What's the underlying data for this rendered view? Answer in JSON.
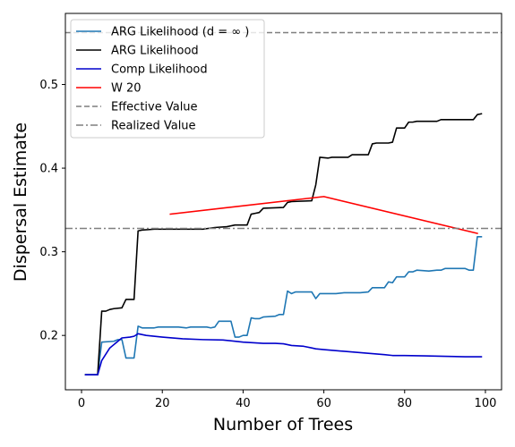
{
  "chart_data": {
    "type": "line",
    "title": "",
    "xlabel": "Number of Trees",
    "ylabel": "Dispersal Estimate",
    "xlim": [
      -4,
      104
    ],
    "ylim": [
      0.135,
      0.585
    ],
    "xticks": [
      0,
      20,
      40,
      60,
      80,
      100
    ],
    "yticks": [
      0.2,
      0.3,
      0.4,
      0.5
    ],
    "ytick_labels": [
      "0.2",
      "0.3",
      "0.4",
      "0.5"
    ],
    "grid": false,
    "legend_position": "top-left",
    "series": [
      {
        "name": "ARG Likelihood (d = ∞ )",
        "color": "#1f77b4",
        "style": "solid",
        "points": [
          [
            1,
            0.153
          ],
          [
            4,
            0.153
          ],
          [
            5,
            0.192
          ],
          [
            8,
            0.193
          ],
          [
            9,
            0.195
          ],
          [
            10,
            0.195
          ],
          [
            11,
            0.173
          ],
          [
            13,
            0.173
          ],
          [
            14,
            0.211
          ],
          [
            15,
            0.209
          ],
          [
            18,
            0.209
          ],
          [
            19,
            0.21
          ],
          [
            24,
            0.21
          ],
          [
            26,
            0.209
          ],
          [
            27,
            0.21
          ],
          [
            31,
            0.21
          ],
          [
            32,
            0.209
          ],
          [
            33,
            0.21
          ],
          [
            34,
            0.217
          ],
          [
            37,
            0.217
          ],
          [
            38,
            0.198
          ],
          [
            39,
            0.198
          ],
          [
            40,
            0.2
          ],
          [
            41,
            0.2
          ],
          [
            42,
            0.221
          ],
          [
            43,
            0.22
          ],
          [
            44,
            0.22
          ],
          [
            45,
            0.222
          ],
          [
            48,
            0.223
          ],
          [
            49,
            0.225
          ],
          [
            50,
            0.225
          ],
          [
            51,
            0.253
          ],
          [
            52,
            0.25
          ],
          [
            53,
            0.252
          ],
          [
            57,
            0.252
          ],
          [
            58,
            0.244
          ],
          [
            59,
            0.25
          ],
          [
            63,
            0.25
          ],
          [
            65,
            0.251
          ],
          [
            69,
            0.251
          ],
          [
            71,
            0.252
          ],
          [
            72,
            0.257
          ],
          [
            75,
            0.257
          ],
          [
            76,
            0.264
          ],
          [
            77,
            0.263
          ],
          [
            78,
            0.27
          ],
          [
            80,
            0.27
          ],
          [
            81,
            0.276
          ],
          [
            82,
            0.276
          ],
          [
            83,
            0.278
          ],
          [
            86,
            0.277
          ],
          [
            88,
            0.278
          ],
          [
            89,
            0.278
          ],
          [
            90,
            0.28
          ],
          [
            95,
            0.28
          ],
          [
            96,
            0.278
          ],
          [
            97,
            0.278
          ],
          [
            98,
            0.318
          ],
          [
            99,
            0.318
          ]
        ]
      },
      {
        "name": "ARG Likelihood",
        "color": "#000000",
        "style": "solid",
        "points": [
          [
            1,
            0.153
          ],
          [
            4,
            0.153
          ],
          [
            5,
            0.229
          ],
          [
            6,
            0.229
          ],
          [
            7,
            0.231
          ],
          [
            8,
            0.232
          ],
          [
            10,
            0.233
          ],
          [
            11,
            0.243
          ],
          [
            13,
            0.243
          ],
          [
            14,
            0.325
          ],
          [
            15,
            0.326
          ],
          [
            18,
            0.327
          ],
          [
            30,
            0.327
          ],
          [
            33,
            0.329
          ],
          [
            36,
            0.33
          ],
          [
            38,
            0.332
          ],
          [
            41,
            0.332
          ],
          [
            42,
            0.345
          ],
          [
            43,
            0.346
          ],
          [
            44,
            0.347
          ],
          [
            45,
            0.352
          ],
          [
            50,
            0.353
          ],
          [
            51,
            0.359
          ],
          [
            52,
            0.36
          ],
          [
            57,
            0.361
          ],
          [
            58,
            0.38
          ],
          [
            59,
            0.413
          ],
          [
            61,
            0.412
          ],
          [
            62,
            0.413
          ],
          [
            66,
            0.413
          ],
          [
            67,
            0.416
          ],
          [
            71,
            0.416
          ],
          [
            72,
            0.429
          ],
          [
            73,
            0.43
          ],
          [
            76,
            0.43
          ],
          [
            77,
            0.431
          ],
          [
            78,
            0.448
          ],
          [
            80,
            0.448
          ],
          [
            81,
            0.455
          ],
          [
            82,
            0.455
          ],
          [
            83,
            0.456
          ],
          [
            88,
            0.456
          ],
          [
            89,
            0.458
          ],
          [
            97,
            0.458
          ],
          [
            98,
            0.464
          ],
          [
            99,
            0.465
          ]
        ]
      },
      {
        "name": "Comp Likelihood",
        "color": "#0000cc",
        "style": "solid",
        "points": [
          [
            1,
            0.153
          ],
          [
            4,
            0.153
          ],
          [
            5,
            0.17
          ],
          [
            7,
            0.185
          ],
          [
            9,
            0.193
          ],
          [
            10,
            0.197
          ],
          [
            12,
            0.198
          ],
          [
            13,
            0.199
          ],
          [
            14,
            0.202
          ],
          [
            16,
            0.2
          ],
          [
            20,
            0.198
          ],
          [
            25,
            0.196
          ],
          [
            30,
            0.195
          ],
          [
            35,
            0.1945
          ],
          [
            40,
            0.192
          ],
          [
            45,
            0.1905
          ],
          [
            48,
            0.1905
          ],
          [
            50,
            0.19
          ],
          [
            52,
            0.188
          ],
          [
            55,
            0.187
          ],
          [
            57,
            0.185
          ],
          [
            58,
            0.184
          ],
          [
            60,
            0.183
          ],
          [
            65,
            0.181
          ],
          [
            70,
            0.179
          ],
          [
            75,
            0.177
          ],
          [
            77,
            0.176
          ],
          [
            80,
            0.176
          ],
          [
            85,
            0.1755
          ],
          [
            90,
            0.175
          ],
          [
            95,
            0.1745
          ],
          [
            99,
            0.1745
          ]
        ]
      },
      {
        "name": "W 20",
        "color": "#ff0000",
        "style": "solid",
        "points": [
          [
            22,
            0.345
          ],
          [
            60,
            0.366
          ],
          [
            98,
            0.322
          ]
        ]
      },
      {
        "name": "Effective Value",
        "color": "#7f7f7f",
        "style": "dashed",
        "hline": 0.562
      },
      {
        "name": "Realized Value",
        "color": "#7f7f7f",
        "style": "dashdot",
        "hline": 0.328
      }
    ]
  }
}
